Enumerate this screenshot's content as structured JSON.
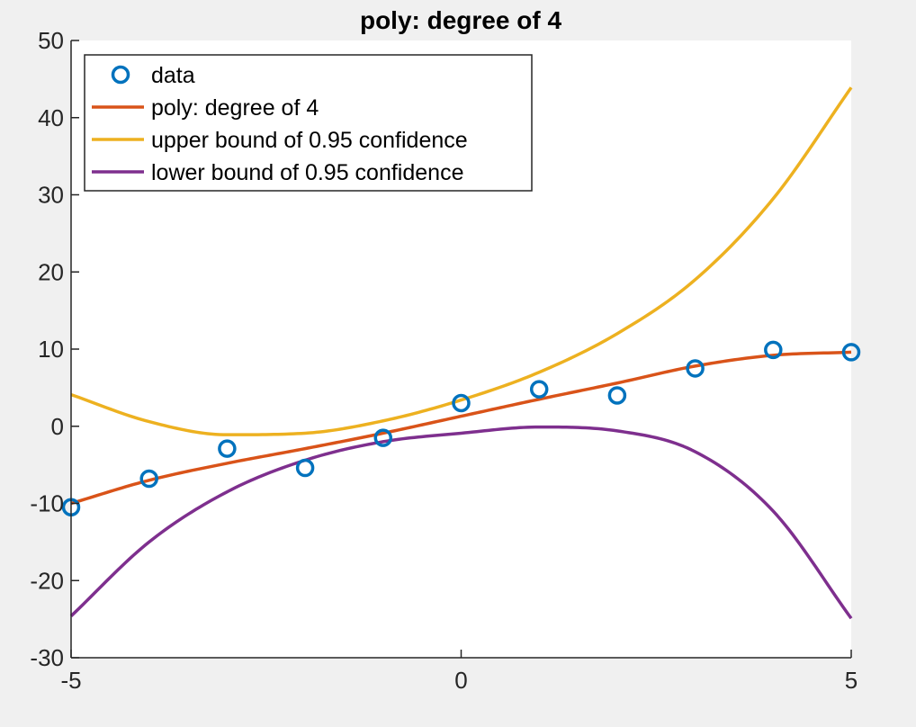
{
  "colors": {
    "data": "#0072bd",
    "fit": "#d95319",
    "upper": "#edb120",
    "lower": "#7e2f8e",
    "axes_bg": "#ffffff",
    "figure_bg": "#f0f0f0"
  },
  "chart_data": {
    "type": "line",
    "title": "poly: degree of 4",
    "xlabel": "",
    "ylabel": "",
    "xlim": [
      -5,
      5
    ],
    "ylim": [
      -30,
      50
    ],
    "xticks": [
      -5,
      0,
      5
    ],
    "yticks": [
      -30,
      -20,
      -10,
      0,
      10,
      20,
      30,
      40,
      50
    ],
    "grid": false,
    "legend_position": "top-left",
    "series": [
      {
        "name": "data",
        "style": "markers",
        "marker": "circle",
        "x": [
          -5,
          -4,
          -3,
          -2,
          -1,
          0,
          1,
          2,
          3,
          4,
          5
        ],
        "y": [
          -10.5,
          -6.8,
          -2.9,
          -5.4,
          -1.5,
          3.0,
          4.8,
          4.0,
          7.5,
          9.9,
          9.6
        ]
      },
      {
        "name": "poly: degree of 4",
        "style": "line",
        "x": [
          -5,
          -4,
          -3,
          -2,
          -1,
          0,
          1,
          2,
          3,
          4,
          5
        ],
        "y": [
          -10.0,
          -7.0,
          -4.8,
          -2.9,
          -0.9,
          1.3,
          3.5,
          5.6,
          7.8,
          9.2,
          9.6
        ]
      },
      {
        "name": "upper bound of 0.95 confidence",
        "style": "line",
        "x": [
          -5,
          -4,
          -3,
          -2,
          -1,
          0,
          1,
          2,
          3,
          4,
          5
        ],
        "y": [
          4.1,
          0.6,
          -1.1,
          -0.9,
          0.7,
          3.4,
          7.0,
          12.0,
          19.0,
          29.5,
          43.9
        ]
      },
      {
        "name": "lower bound of 0.95 confidence",
        "style": "line",
        "x": [
          -5,
          -4,
          -3,
          -2,
          -1,
          0,
          1,
          2,
          3,
          4,
          5
        ],
        "y": [
          -24.6,
          -15.0,
          -8.5,
          -4.4,
          -2.0,
          -0.9,
          -0.1,
          -0.6,
          -3.3,
          -11.0,
          -24.9
        ]
      }
    ]
  }
}
